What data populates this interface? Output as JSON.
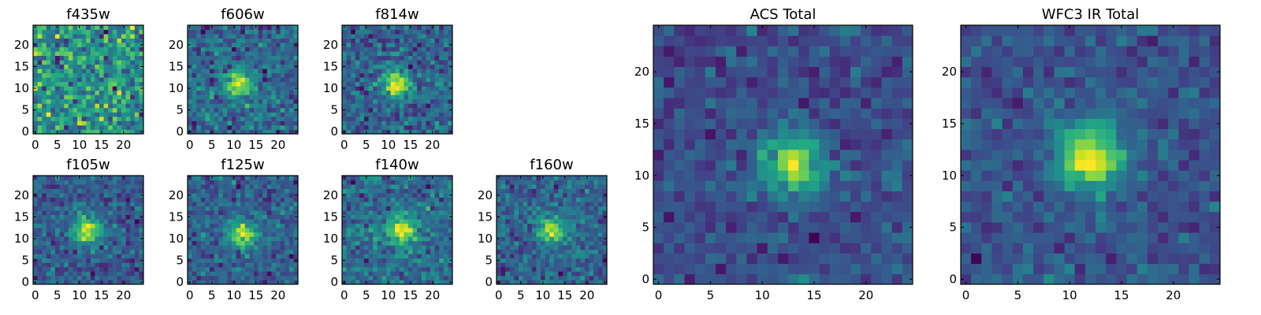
{
  "chart_data": [
    {
      "type": "heatmap",
      "title": "f435w",
      "grid_size": 25,
      "ticks": [
        0,
        5,
        10,
        15,
        20
      ],
      "xlim": [
        -0.5,
        24.5
      ],
      "ylim": [
        -0.5,
        24.5
      ],
      "colormap": "viridis",
      "source_peak": null,
      "noise_level": 0.95,
      "seed": 11
    },
    {
      "type": "heatmap",
      "title": "f606w",
      "grid_size": 25,
      "ticks": [
        0,
        5,
        10,
        15,
        20
      ],
      "xlim": [
        -0.5,
        24.5
      ],
      "ylim": [
        -0.5,
        24.5
      ],
      "colormap": "viridis",
      "source_peak": [
        11,
        11
      ],
      "noise_level": 0.8,
      "seed": 23
    },
    {
      "type": "heatmap",
      "title": "f814w",
      "grid_size": 25,
      "ticks": [
        0,
        5,
        10,
        15,
        20
      ],
      "xlim": [
        -0.5,
        24.5
      ],
      "ylim": [
        -0.5,
        24.5
      ],
      "colormap": "viridis",
      "source_peak": [
        12,
        11
      ],
      "noise_level": 0.8,
      "seed": 37
    },
    {
      "type": "heatmap",
      "title": "f105w",
      "grid_size": 25,
      "ticks": [
        0,
        5,
        10,
        15,
        20
      ],
      "xlim": [
        -0.5,
        24.5
      ],
      "ylim": [
        -0.5,
        24.5
      ],
      "colormap": "viridis",
      "source_peak": [
        12,
        12
      ],
      "noise_level": 0.6,
      "seed": 41
    },
    {
      "type": "heatmap",
      "title": "f125w",
      "grid_size": 25,
      "ticks": [
        0,
        5,
        10,
        15,
        20
      ],
      "xlim": [
        -0.5,
        24.5
      ],
      "ylim": [
        -0.5,
        24.5
      ],
      "colormap": "viridis",
      "source_peak": [
        12,
        11
      ],
      "noise_level": 0.7,
      "seed": 53
    },
    {
      "type": "heatmap",
      "title": "f140w",
      "grid_size": 25,
      "ticks": [
        0,
        5,
        10,
        15,
        20
      ],
      "xlim": [
        -0.5,
        24.5
      ],
      "ylim": [
        -0.5,
        24.5
      ],
      "colormap": "viridis",
      "source_peak": [
        13,
        12
      ],
      "noise_level": 0.7,
      "seed": 67
    },
    {
      "type": "heatmap",
      "title": "f160w",
      "grid_size": 25,
      "ticks": [
        0,
        5,
        10,
        15,
        20
      ],
      "xlim": [
        -0.5,
        24.5
      ],
      "ylim": [
        -0.5,
        24.5
      ],
      "colormap": "viridis",
      "source_peak": [
        12,
        12
      ],
      "noise_level": 0.7,
      "seed": 79
    },
    {
      "type": "heatmap",
      "title": "ACS Total",
      "grid_size": 25,
      "ticks": [
        0,
        5,
        10,
        15,
        20
      ],
      "xlim": [
        -0.5,
        24.5
      ],
      "ylim": [
        -0.5,
        24.5
      ],
      "colormap": "viridis",
      "source_peak": [
        13,
        11
      ],
      "noise_level": 0.55,
      "seed": 97
    },
    {
      "type": "heatmap",
      "title": "WFC3 IR Total",
      "grid_size": 25,
      "ticks": [
        0,
        5,
        10,
        15,
        20
      ],
      "xlim": [
        -0.5,
        24.5
      ],
      "ylim": [
        -0.5,
        24.5
      ],
      "colormap": "viridis",
      "source_peak": [
        12,
        12
      ],
      "noise_level": 0.4,
      "seed": 113
    }
  ],
  "colors": {
    "frame": "#000000",
    "background": "#ffffff"
  }
}
